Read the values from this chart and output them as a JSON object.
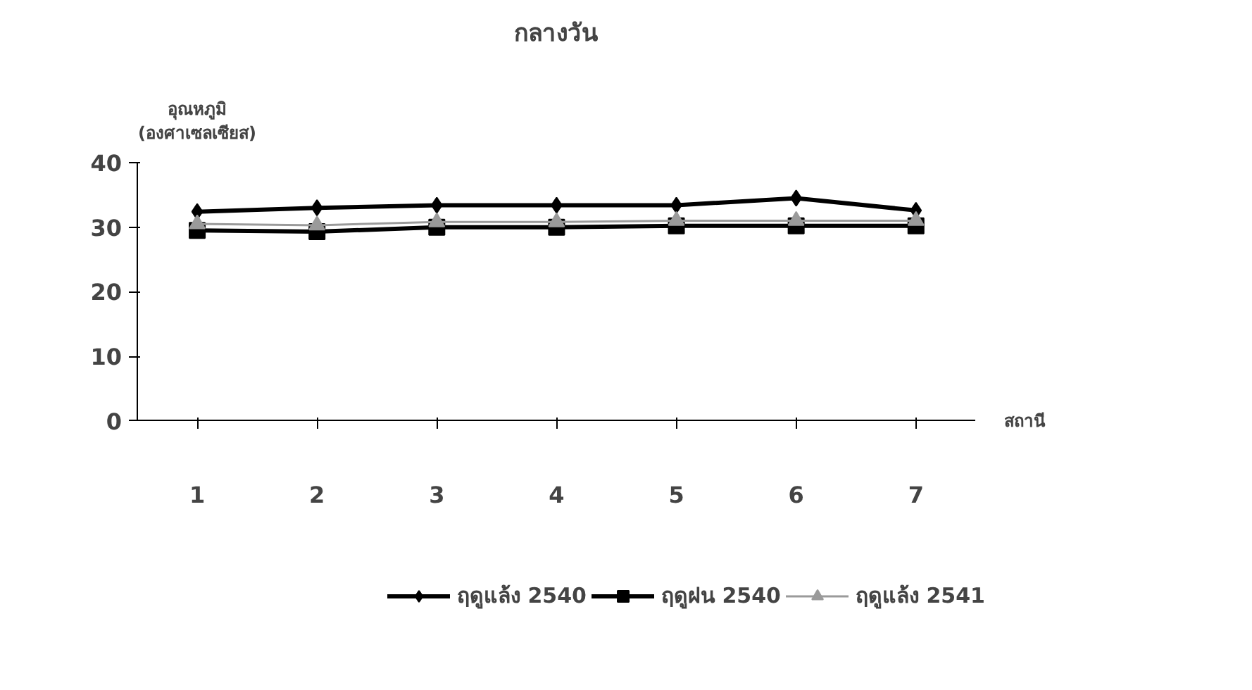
{
  "chart_data": {
    "type": "line",
    "title": "กลางวัน",
    "ylabel": "อุณหภูมิ\n(องศาเซลเซียส)",
    "xlabel": "สถานี",
    "categories": [
      "1",
      "2",
      "3",
      "4",
      "5",
      "6",
      "7"
    ],
    "ylim": [
      0,
      40
    ],
    "yticks": [
      0,
      10,
      20,
      30,
      40
    ],
    "grid": false,
    "legend": "bottom",
    "series": [
      {
        "name": "ฤดูแล้ง 2540",
        "color": "#000000",
        "marker": "diamond",
        "values": [
          32.4,
          33.0,
          33.4,
          33.4,
          33.4,
          34.5,
          32.6
        ]
      },
      {
        "name": "ฤดูฝน 2540",
        "color": "#000000",
        "marker": "square",
        "values": [
          29.5,
          29.3,
          30.0,
          30.0,
          30.2,
          30.2,
          30.2
        ]
      },
      {
        "name": "ฤดูแล้ง 2541",
        "color": "#9a9a9a",
        "marker": "triangle",
        "values": [
          30.5,
          30.3,
          30.8,
          30.8,
          31.0,
          31.0,
          31.0
        ]
      }
    ]
  }
}
